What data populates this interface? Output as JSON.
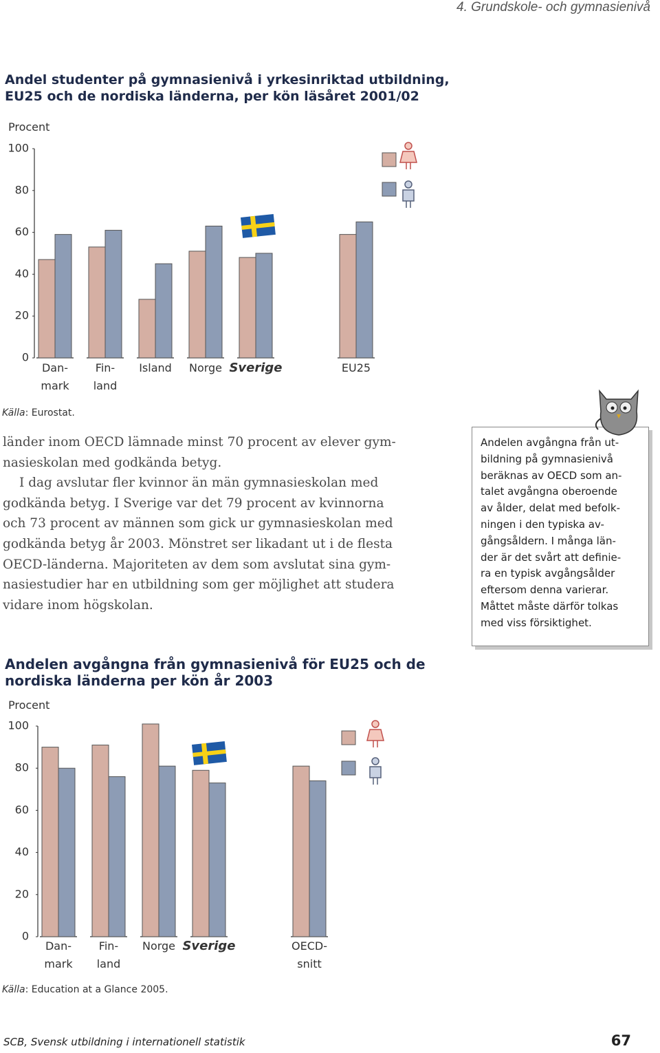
{
  "header": "4. Grundskole- och gymnasienivå",
  "chart_data": [
    {
      "type": "bar",
      "title": "Andel studenter på gymnasienivå i yrkesinriktad utbildning,\nEU25 och de nordiska länderna, per kön läsåret 2001/02",
      "y_label": "Procent",
      "categories": [
        "Dan-\nmark",
        "Fin-\nland",
        "Island",
        "Norge",
        "Sverige",
        null,
        "EU25"
      ],
      "series": [
        {
          "color": "#d5afa3",
          "values": [
            47,
            53,
            28,
            51,
            48,
            null,
            59
          ]
        },
        {
          "color": "#8d9cb5",
          "values": [
            59,
            61,
            45,
            63,
            50,
            null,
            65
          ]
        }
      ],
      "ylim": [
        0,
        100
      ],
      "yticks": [
        0,
        20,
        40,
        60,
        80,
        100
      ],
      "grid": false,
      "highlight_category": 4,
      "source_label": "Källa",
      "source_text": ": Eurostat."
    },
    {
      "type": "bar",
      "title": "Andelen avgångna från gymnasienivå för EU25 och de\nnordiska länderna per kön år 2003",
      "y_label": "Procent",
      "categories": [
        "Dan-\nmark",
        "Fin-\nland",
        "Norge",
        "Sverige",
        null,
        "OECD-snitt"
      ],
      "series": [
        {
          "color": "#d5afa3",
          "values": [
            90,
            91,
            101,
            79,
            null,
            81
          ]
        },
        {
          "color": "#8d9cb5",
          "values": [
            80,
            76,
            81,
            73,
            null,
            74
          ]
        }
      ],
      "ylim": [
        0,
        100
      ],
      "yticks": [
        0,
        20,
        40,
        60,
        80,
        100
      ],
      "grid": false,
      "highlight_category": 3,
      "source_label": "Källa",
      "source_text": ": Education at a Glance 2005."
    }
  ],
  "body": [
    [
      "länder inom OECD lämnade minst 70 procent av elever gym-",
      "nasieskolan med godkända betyg."
    ],
    [
      "I dag avslutar fler kvinnor än män gymnasieskolan med",
      "godkända betyg. I Sverige var det 79 procent av kvinnorna",
      "och 73 procent av männen som gick ur gymnasieskolan med",
      "godkända betyg år 2003. Mönstret ser likadant ut i de flesta",
      "OECD-länderna. Majoriteten av dem som avslutat sina gym-",
      "nasiestudier har en utbildning som ger möjlighet att studera",
      "vidare inom högskolan."
    ]
  ],
  "sidebar": [
    "Andelen avgångna från ut-",
    "bildning på gymnasienivå",
    "beräknas av OECD som an-",
    "talet avgångna oberoende",
    "av ålder, delat med befolk-",
    "ningen i den typiska av-",
    "gångsåldern. I många län-",
    "der är det svårt att definie-",
    "ra en typisk avgångsålder",
    "eftersom denna varierar.",
    "Måttet måste därför tolkas",
    "med viss försiktighet."
  ],
  "footer": "SCB, Svensk utbildning i internationell statistik",
  "page_number": "67"
}
